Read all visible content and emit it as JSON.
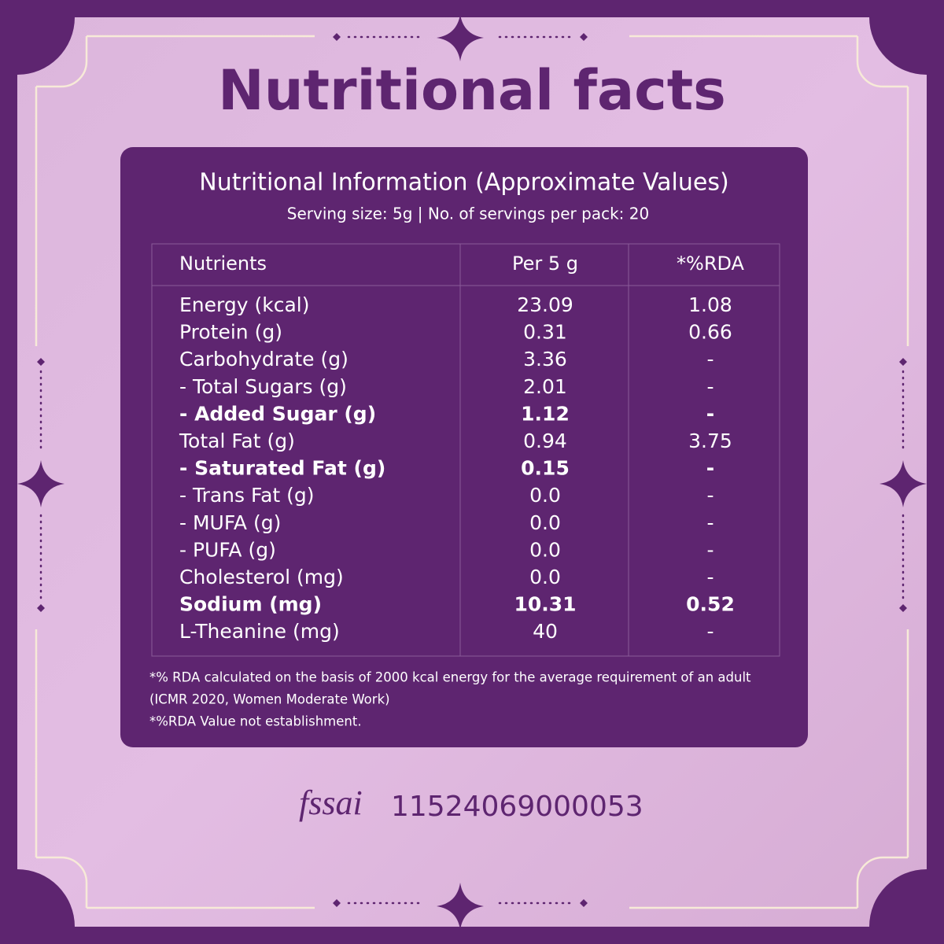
{
  "title": "Nutritional facts",
  "panel": {
    "heading": "Nutritional Information (Approximate Values)",
    "subheading": "Serving size: 5g | No. of servings per pack: 20"
  },
  "table": {
    "columns": [
      "Nutrients",
      "Per 5 g",
      "*%RDA"
    ],
    "rows": [
      {
        "cells": [
          "Energy (kcal)",
          "23.09",
          "1.08"
        ],
        "bold": false
      },
      {
        "cells": [
          "Protein (g)",
          "0.31",
          "0.66"
        ],
        "bold": false
      },
      {
        "cells": [
          "Carbohydrate (g)",
          "3.36",
          "-"
        ],
        "bold": false
      },
      {
        "cells": [
          "- Total Sugars (g)",
          "2.01",
          "-"
        ],
        "bold": false
      },
      {
        "cells": [
          "- Added Sugar (g)",
          "1.12",
          "-"
        ],
        "bold": true
      },
      {
        "cells": [
          "Total Fat (g)",
          "0.94",
          "3.75"
        ],
        "bold": false
      },
      {
        "cells": [
          "- Saturated Fat (g)",
          "0.15",
          "-"
        ],
        "bold": true
      },
      {
        "cells": [
          "- Trans Fat (g)",
          "0.0",
          "-"
        ],
        "bold": false
      },
      {
        "cells": [
          "- MUFA (g)",
          "0.0",
          "-"
        ],
        "bold": false
      },
      {
        "cells": [
          "- PUFA (g)",
          "0.0",
          "-"
        ],
        "bold": false
      },
      {
        "cells": [
          "Cholesterol  (mg)",
          "0.0",
          "-"
        ],
        "bold": false
      },
      {
        "cells": [
          "Sodium (mg)",
          "10.31",
          "0.52"
        ],
        "bold": true
      },
      {
        "cells": [
          "L-Theanine (mg)",
          "40",
          "-"
        ],
        "bold": false
      }
    ]
  },
  "notes": [
    "*% RDA calculated on the basis of 2000 kcal energy for the average requirement of an adult",
    "(ICMR 2020, Women Moderate Work)",
    "*%RDA Value not establishment."
  ],
  "footer": {
    "logo": "fssai",
    "license": "11524069000053"
  }
}
